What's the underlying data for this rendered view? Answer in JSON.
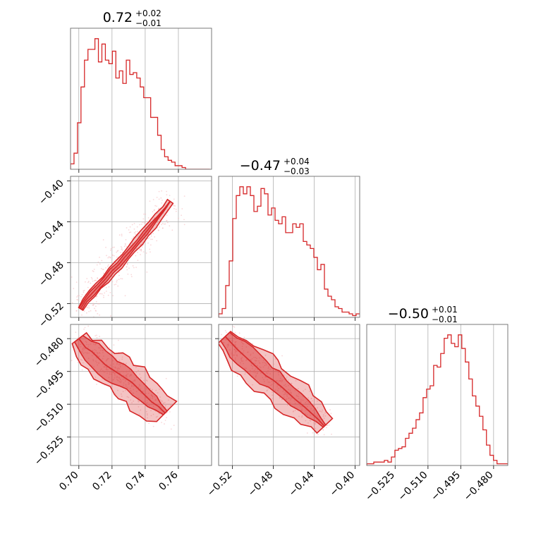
{
  "chart_data": {
    "type": "corner",
    "color": "#d62728",
    "point_color": "#f4b6ba",
    "grid": true,
    "parameters": [
      {
        "title": {
          "value": "0.72",
          "plus": "+0.02",
          "minus": "−0.01"
        },
        "range": [
          0.695,
          0.78
        ],
        "ticks": [
          {
            "value": 0.7,
            "label": "0.70"
          },
          {
            "value": 0.72,
            "label": "0.72"
          },
          {
            "value": 0.74,
            "label": "0.74"
          },
          {
            "value": 0.76,
            "label": "0.76"
          }
        ],
        "hist": {
          "start": 0.695,
          "bin_width": 0.0021,
          "counts": [
            3,
            9,
            26,
            46,
            61,
            67,
            67,
            73,
            60,
            70,
            61,
            59,
            66,
            51,
            55,
            48,
            61,
            53,
            54,
            51,
            46,
            40,
            40,
            29,
            29,
            19,
            11,
            7,
            5,
            4,
            2,
            2,
            1,
            0,
            0,
            0,
            0,
            0,
            0,
            0
          ]
        }
      },
      {
        "title": {
          "value": "−0.47",
          "plus": "+0.04",
          "minus": "−0.03"
        },
        "range": [
          -0.5335,
          -0.3955
        ],
        "ticks": [
          {
            "value": -0.52,
            "label": "−0.52"
          },
          {
            "value": -0.48,
            "label": "−0.48"
          },
          {
            "value": -0.44,
            "label": "−0.44"
          },
          {
            "value": -0.4,
            "label": "−0.40"
          }
        ],
        "hist": {
          "start": -0.5335,
          "bin_width": 0.00345,
          "counts": [
            2,
            5,
            18,
            32,
            56,
            69,
            74,
            70,
            74,
            69,
            60,
            63,
            73,
            70,
            58,
            62,
            55,
            53,
            57,
            48,
            48,
            53,
            51,
            53,
            43,
            41,
            39,
            34,
            27,
            30,
            16,
            12,
            10,
            6,
            5,
            3,
            3,
            2,
            1,
            2
          ]
        }
      },
      {
        "title": {
          "value": "−0.50",
          "plus": "+0.01",
          "minus": "−0.01"
        },
        "range": [
          -0.538,
          -0.4735
        ],
        "ticks": [
          {
            "value": -0.525,
            "label": "−0.525"
          },
          {
            "value": -0.51,
            "label": "−0.510"
          },
          {
            "value": -0.495,
            "label": "−0.495"
          },
          {
            "value": -0.48,
            "label": "−0.480"
          }
        ],
        "hist": {
          "start": -0.538,
          "bin_width": 0.00161,
          "counts": [
            1,
            1,
            2,
            2,
            2,
            3,
            2,
            5,
            9,
            10,
            11,
            16,
            19,
            22,
            27,
            31,
            40,
            45,
            47,
            59,
            58,
            66,
            75,
            77,
            72,
            70,
            77,
            69,
            61,
            51,
            41,
            35,
            29,
            21,
            12,
            6,
            3,
            1,
            1,
            1
          ]
        }
      }
    ],
    "joint": [
      {
        "row": 1,
        "col": 0,
        "centers": [
          [
            0.701,
            -0.525
          ],
          [
            0.704,
            -0.517
          ],
          [
            0.708,
            -0.51
          ],
          [
            0.712,
            -0.503
          ],
          [
            0.716,
            -0.496
          ],
          [
            0.72,
            -0.488
          ],
          [
            0.724,
            -0.482
          ],
          [
            0.728,
            -0.474
          ],
          [
            0.732,
            -0.467
          ],
          [
            0.736,
            -0.459
          ],
          [
            0.74,
            -0.451
          ],
          [
            0.744,
            -0.443
          ],
          [
            0.748,
            -0.435
          ],
          [
            0.752,
            -0.427
          ],
          [
            0.755,
            -0.42
          ]
        ],
        "widths": [
          0.0025,
          0.003,
          0.0037,
          0.0036,
          0.0038,
          0.0042,
          0.004,
          0.004,
          0.0041,
          0.0043,
          0.0045,
          0.0045,
          0.004,
          0.0035,
          0.0028
        ],
        "inner_widths": [
          0.0015,
          0.0018,
          0.0023,
          0.0022,
          0.0021,
          0.0023,
          0.0022,
          0.0022,
          0.0021,
          0.002,
          0.0021,
          0.0018,
          0.001,
          0.0005,
          0.0002
        ],
        "spread_x": 0.0085,
        "spread_y": 0.014
      },
      {
        "row": 2,
        "col": 0,
        "centers": [
          [
            0.7,
            -0.48
          ],
          [
            0.704,
            -0.484
          ],
          [
            0.708,
            -0.486
          ],
          [
            0.712,
            -0.489
          ],
          [
            0.716,
            -0.492
          ],
          [
            0.72,
            -0.494
          ],
          [
            0.724,
            -0.496
          ],
          [
            0.728,
            -0.498
          ],
          [
            0.732,
            -0.5
          ],
          [
            0.736,
            -0.503
          ],
          [
            0.74,
            -0.506
          ],
          [
            0.744,
            -0.509
          ],
          [
            0.748,
            -0.511
          ],
          [
            0.752,
            -0.514
          ]
        ],
        "widths": [
          0.004,
          0.0055,
          0.0068,
          0.0075,
          0.008,
          0.0082,
          0.0085,
          0.0085,
          0.0084,
          0.0083,
          0.0082,
          0.008,
          0.0072,
          0.0062
        ],
        "inner_widths": [
          0.0025,
          0.0035,
          0.0045,
          0.0048,
          0.005,
          0.005,
          0.0048,
          0.0046,
          0.0042,
          0.004,
          0.0036,
          0.003,
          0.002,
          0.0012
        ],
        "spread_x": 0.006,
        "spread_y": 0.0068
      },
      {
        "row": 2,
        "col": 1,
        "centers": [
          [
            -0.527,
            -0.479
          ],
          [
            -0.521,
            -0.482
          ],
          [
            -0.515,
            -0.485
          ],
          [
            -0.508,
            -0.488
          ],
          [
            -0.501,
            -0.491
          ],
          [
            -0.494,
            -0.494
          ],
          [
            -0.487,
            -0.497
          ],
          [
            -0.48,
            -0.499
          ],
          [
            -0.472,
            -0.502
          ],
          [
            -0.465,
            -0.505
          ],
          [
            -0.458,
            -0.508
          ],
          [
            -0.45,
            -0.511
          ],
          [
            -0.443,
            -0.514
          ],
          [
            -0.436,
            -0.517
          ],
          [
            -0.43,
            -0.52
          ]
        ],
        "widths": [
          0.0038,
          0.0052,
          0.0065,
          0.0075,
          0.008,
          0.0082,
          0.0083,
          0.0082,
          0.008,
          0.0078,
          0.0075,
          0.0072,
          0.0066,
          0.0058,
          0.0045
        ],
        "inner_widths": [
          0.0025,
          0.0035,
          0.0045,
          0.0049,
          0.005,
          0.0049,
          0.0048,
          0.0045,
          0.0042,
          0.0038,
          0.0034,
          0.003,
          0.0024,
          0.0016,
          0.0008
        ],
        "spread_x": 0.009,
        "spread_y": 0.0062
      }
    ]
  }
}
